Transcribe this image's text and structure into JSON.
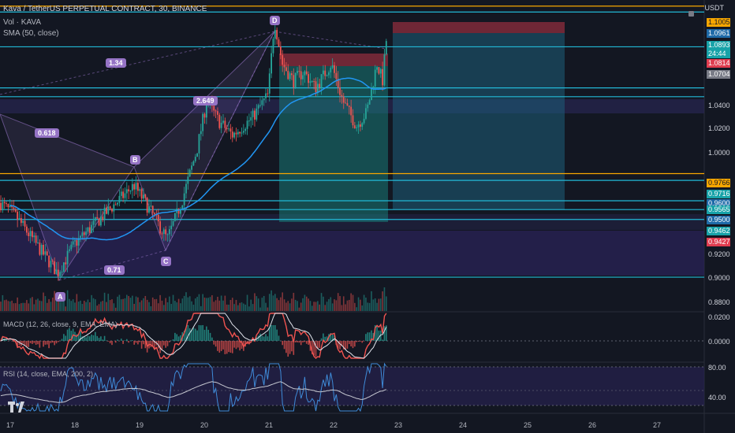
{
  "header": {
    "title": "Kava / TetherUS PERPETUAL CONTRACT, 30, BINANCE",
    "vol": "Vol · KAVA",
    "sma": "SMA (50, close)"
  },
  "axis_currency": "USDT",
  "price_axis": [
    "1.0400",
    "1.0200",
    "1.0000",
    "0.9200",
    "0.9000",
    "0.8800"
  ],
  "price_tags": [
    {
      "text": "1.1005",
      "color": "#f7a600",
      "fg": "#131722"
    },
    {
      "text": "1.0961",
      "color": "#1e6aa8",
      "fg": "#ffffff"
    },
    {
      "text": "1.0893",
      "color": "#17a2a8",
      "fg": "#ffffff"
    },
    {
      "text": "24:44",
      "color": "#17a2a8",
      "fg": "#ffffff"
    },
    {
      "text": "1.0814",
      "color": "#e03c4f",
      "fg": "#ffffff"
    },
    {
      "text": "1.0704",
      "color": "#787b86",
      "fg": "#ffffff"
    },
    {
      "text": "0.9766",
      "color": "#f7a600",
      "fg": "#131722"
    },
    {
      "text": "0.9716",
      "color": "#17a2a8",
      "fg": "#ffffff"
    },
    {
      "text": "0.9600",
      "color": "#1e6aa8",
      "fg": "#ffffff"
    },
    {
      "text": "0.9565",
      "color": "#17a2a8",
      "fg": "#ffffff"
    },
    {
      "text": "0.9500",
      "color": "#1e6aa8",
      "fg": "#ffffff"
    },
    {
      "text": "0.9462",
      "color": "#17a2a8",
      "fg": "#ffffff"
    },
    {
      "text": "0.9427",
      "color": "#e03c4f",
      "fg": "#ffffff"
    }
  ],
  "pattern_points": [
    "A",
    "B",
    "C",
    "D"
  ],
  "pattern_ratios": [
    "1.34",
    "0.618",
    "2.649",
    "0.71"
  ],
  "macd": {
    "label": "MACD (12, 26, close, 9, EMA, EMA)",
    "axis": [
      "0.0200",
      "0.0000"
    ]
  },
  "rsi": {
    "label": "RSI (14, close, EMA, 200, 2)",
    "axis": [
      "80.00",
      "40.00"
    ]
  },
  "dates": [
    "17",
    "18",
    "19",
    "20",
    "21",
    "22",
    "23",
    "24",
    "25",
    "26",
    "27"
  ],
  "colors": {
    "background": "#131722",
    "up": "#26a69a",
    "down": "#ef5350",
    "sma": "#2196f3",
    "pattern": "#9573c5",
    "level_orange": "#f7a600",
    "level_cyan": "#22b8d6"
  },
  "chart_data": {
    "type": "candlestick",
    "price_range": [
      0.875,
      1.105
    ],
    "levels": [
      1.1005,
      1.0961,
      1.0704,
      1.04,
      1.0335,
      0.9766,
      0.9716,
      0.9565,
      0.95,
      0.9427,
      0.9
    ],
    "sma_period": 50
  }
}
